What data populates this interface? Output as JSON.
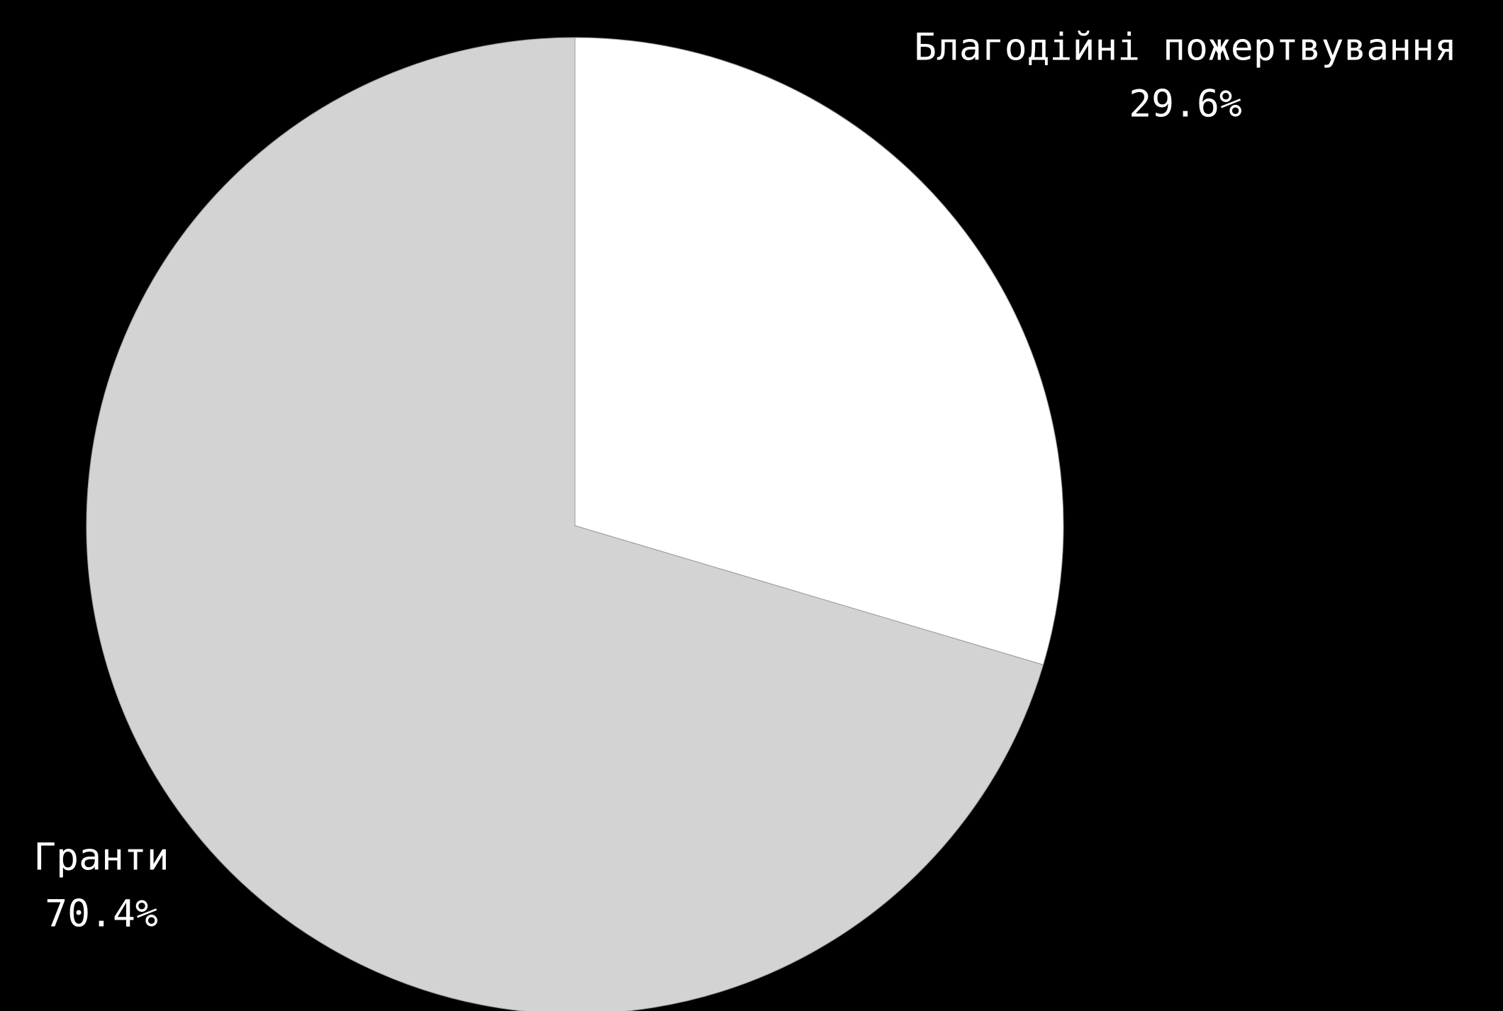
{
  "chart_data": {
    "type": "pie",
    "title": "",
    "slices": [
      {
        "label": "Благодійні пожертвування",
        "value": 29.6,
        "value_label": "29.6%",
        "color": "#ffffff"
      },
      {
        "label": "Гранти",
        "value": 70.4,
        "value_label": "70.4%",
        "color": "#d3d3d3"
      }
    ],
    "start_angle": "12 o'clock",
    "direction": "clockwise",
    "background": "#000000",
    "label_color": "#ffffff",
    "edge_color": "#999999"
  }
}
